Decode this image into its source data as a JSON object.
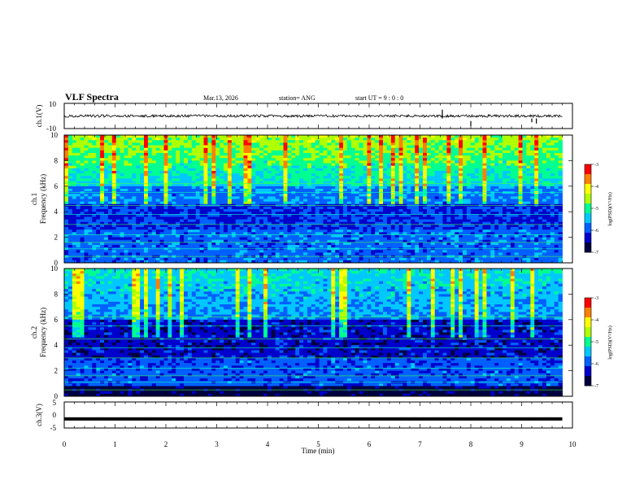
{
  "chart_data": {
    "type": "spectrogram",
    "title": "VLF Spectra",
    "date": "Mar.13, 2026",
    "station": "station= ANG",
    "start_ut": "start  UT  =    9 : 0  : 0",
    "x_axis": {
      "label": "Time  (min)",
      "range": [
        0,
        10
      ],
      "ticks": [
        0,
        1,
        2,
        3,
        4,
        5,
        6,
        7,
        8,
        9,
        10
      ]
    },
    "panels": [
      {
        "id": "ch1-waveform",
        "kind": "waveform",
        "ylabel": "ch.1(V)",
        "y_range": [
          -10,
          10
        ],
        "y_ticks": [
          "10",
          "-10"
        ],
        "level": 0.0,
        "data_end_min": 9.8
      },
      {
        "id": "ch1-spectrogram",
        "kind": "spectrogram",
        "ylabel_line1": "ch.1",
        "ylabel_line2": "Frequency  (kHz)",
        "y_range": [
          0,
          10
        ],
        "y_ticks": [
          "0",
          "2",
          "4",
          "6",
          "8",
          "10"
        ],
        "colorbar": {
          "label": "log(PSD)(V²/Hz)",
          "range": [
            -7,
            -3
          ],
          "ticks": [
            "-3",
            "-4",
            "-5",
            "-6",
            "-7"
          ]
        },
        "data_end_min": 9.8
      },
      {
        "id": "ch2-spectrogram",
        "kind": "spectrogram",
        "ylabel_line1": "ch.2",
        "ylabel_line2": "Frequency  (kHz)",
        "y_range": [
          0,
          10
        ],
        "y_ticks": [
          "0",
          "2",
          "4",
          "6",
          "8",
          "10"
        ],
        "colorbar": {
          "label": "log(PSD)(V²/Hz)",
          "range": [
            -7,
            -3
          ],
          "ticks": [
            "-3",
            "-4",
            "-5",
            "-6",
            "-7"
          ]
        },
        "data_end_min": 9.8
      },
      {
        "id": "ch3-waveform",
        "kind": "waveform",
        "ylabel": "ch.3(V)",
        "y_range": [
          -5,
          5
        ],
        "y_ticks": [
          "5",
          "0",
          "-5"
        ],
        "level": -1.5,
        "data_end_min": 9.8
      }
    ]
  },
  "colors": {
    "axis": "#000000",
    "background": "#ffffff",
    "colormap": [
      "#000040",
      "#0000cc",
      "#0060ff",
      "#00c8ff",
      "#00ff90",
      "#b0ff00",
      "#ffff00",
      "#ff8000",
      "#ff0000",
      "#ffffff"
    ]
  }
}
